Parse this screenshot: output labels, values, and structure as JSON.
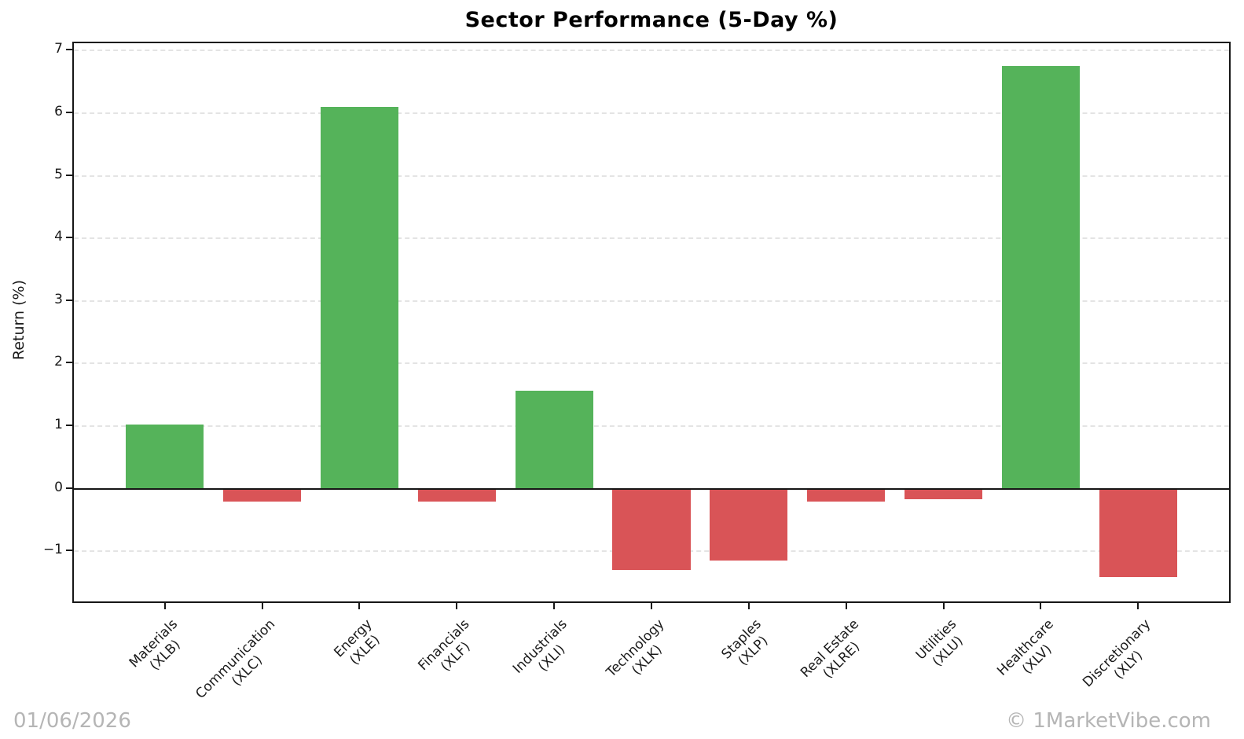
{
  "figure": {
    "footer_date": "01/06/2026",
    "footer_credit": "© 1MarketVibe.com"
  },
  "chart_data": {
    "type": "bar",
    "title": "Sector Performance (5-Day %)",
    "xlabel": "",
    "ylabel": "Return (%)",
    "categories": [
      {
        "sector": "Materials",
        "ticker": "(XLB)"
      },
      {
        "sector": "Communication",
        "ticker": "(XLC)"
      },
      {
        "sector": "Energy",
        "ticker": "(XLE)"
      },
      {
        "sector": "Financials",
        "ticker": "(XLF)"
      },
      {
        "sector": "Industrials",
        "ticker": "(XLI)"
      },
      {
        "sector": "Technology",
        "ticker": "(XLK)"
      },
      {
        "sector": "Staples",
        "ticker": "(XLP)"
      },
      {
        "sector": "Real Estate",
        "ticker": "(XLRE)"
      },
      {
        "sector": "Utilities",
        "ticker": "(XLU)"
      },
      {
        "sector": "Healthcare",
        "ticker": "(XLV)"
      },
      {
        "sector": "Discretionary",
        "ticker": "(XLY)"
      }
    ],
    "values": [
      1.01,
      -0.22,
      6.09,
      -0.22,
      1.55,
      -1.31,
      -1.16,
      -0.22,
      -0.18,
      6.74,
      -1.43
    ],
    "yticks": [
      -1,
      0,
      1,
      2,
      3,
      4,
      5,
      6,
      7
    ],
    "ylim": [
      -1.84,
      7.13
    ],
    "xlim": [
      -0.95,
      10.95
    ],
    "bar_width_fraction": 0.8,
    "grid": "horizontal-dashed",
    "legend_position": "none",
    "positive_color": "#55b35a",
    "negative_color": "#d95457",
    "axis_color": "#161616",
    "grid_color": "#e4e4e4",
    "footer_color": "#b5b5b5"
  }
}
